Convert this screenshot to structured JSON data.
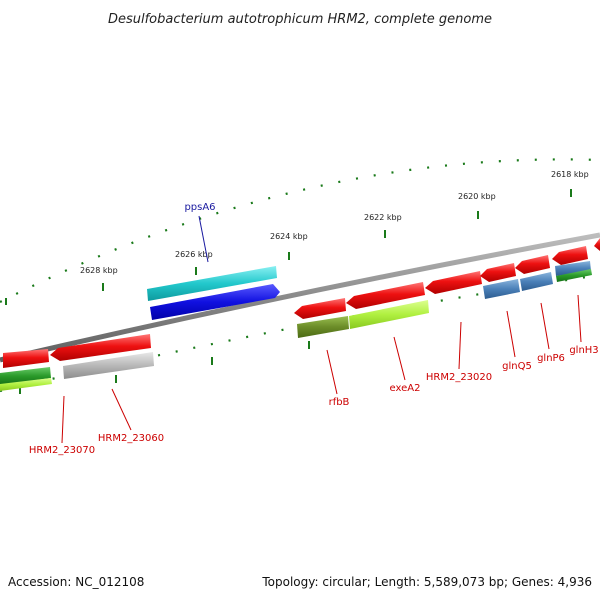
{
  "title": "Desulfobacterium autotrophicum HRM2, complete genome",
  "footer": {
    "accession": "Accession: NC_012108",
    "topology": "Topology: circular; Length: 5,589,073 bp; Genes: 4,936"
  },
  "ruler_labels": [
    "2628 kbp",
    "2626 kbp",
    "2624 kbp",
    "2622 kbp",
    "2620 kbp",
    "2618 kbp"
  ],
  "gene_labels": [
    "ppsA6",
    "HRM2_23070",
    "HRM2_23060",
    "rfbB",
    "exeA2",
    "HRM2_23020",
    "glnQ5",
    "glnP6",
    "glnH3"
  ],
  "colors": {
    "backbone": "#8a8a8a",
    "tick": "#1a7a1a",
    "gene_red": "#ee1111",
    "gene_cyan": "#22c8cc",
    "gene_blue": "#1010e0",
    "gene_grey": "#b8b8b8",
    "gene_olive": "#6b8c28",
    "gene_lime": "#b0f040",
    "gene_steel": "#4a80b8",
    "gene_green": "#2a9a2a",
    "label_red": "#cc0000",
    "label_blue": "#1a1aa0"
  }
}
